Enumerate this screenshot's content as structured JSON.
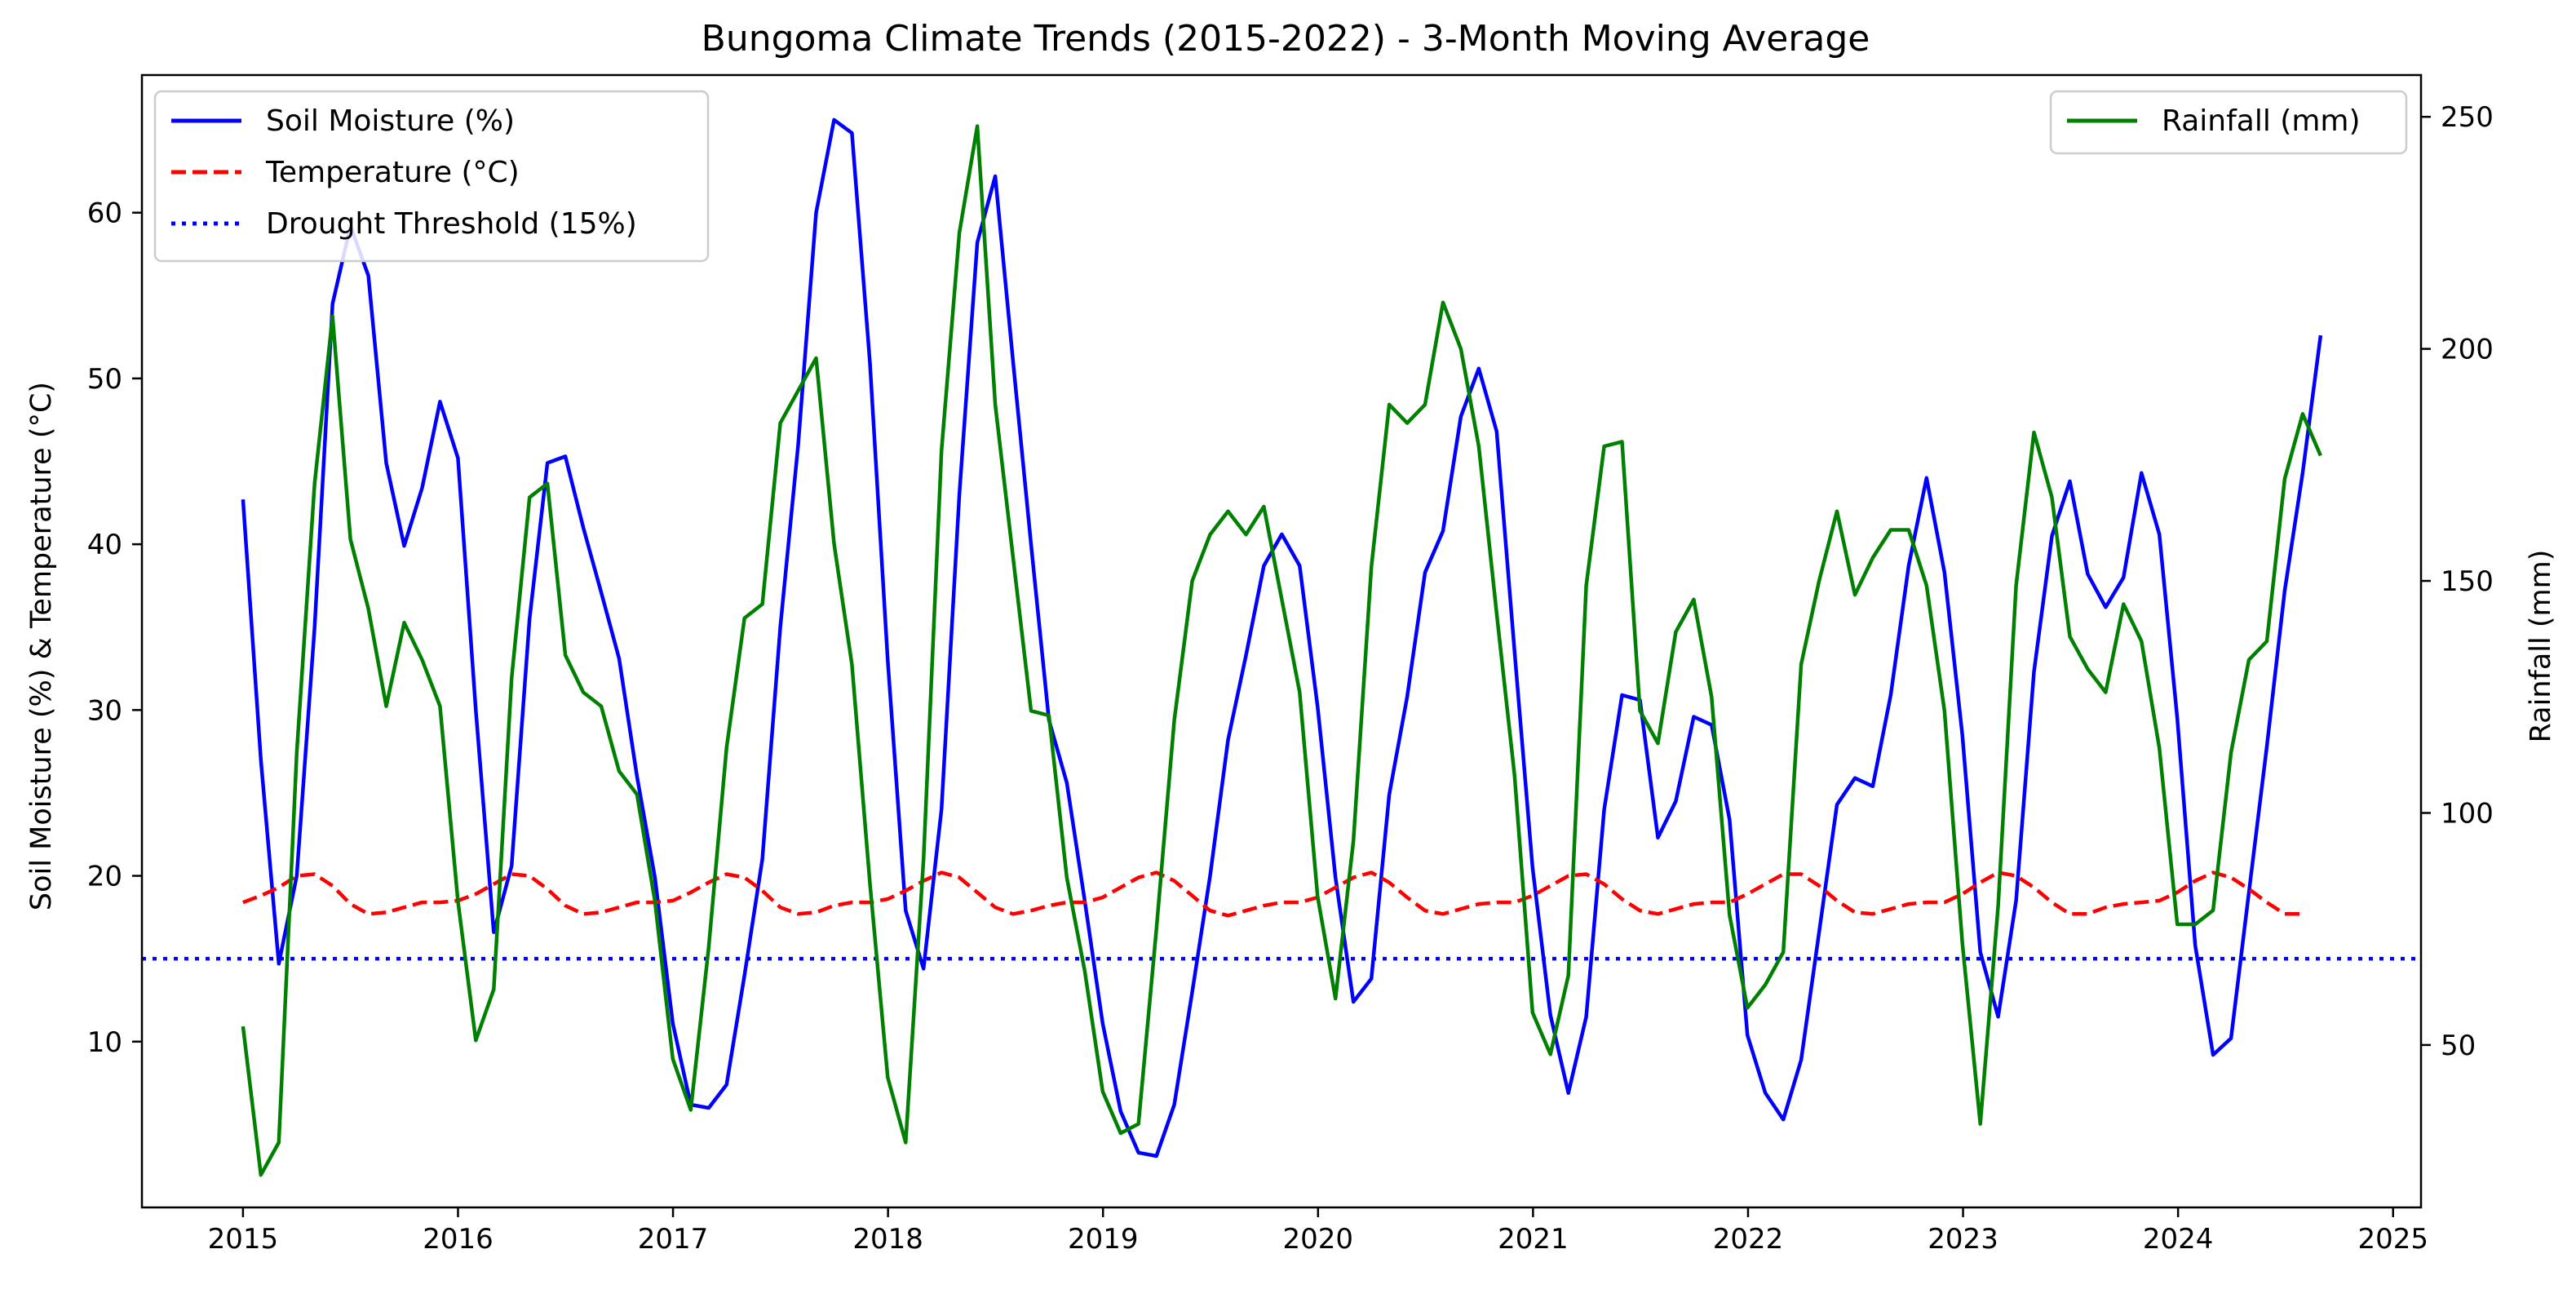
{
  "chart_data": {
    "type": "line",
    "title": "Bungoma Climate Trends (2015-2022) - 3-Month Moving Average",
    "xlabel": "",
    "ylabel": "Soil Moisture (%) & Temperature (°C)",
    "ylabel_right": "Rainfall (mm)",
    "xlim": [
      2014.53,
      2025.13
    ],
    "ylim": [
      0,
      68.3
    ],
    "ylim_right": [
      15,
      259
    ],
    "x_ticks": [
      2015,
      2016,
      2017,
      2018,
      2019,
      2020,
      2021,
      2022,
      2023,
      2024,
      2025
    ],
    "y_ticks": [
      10,
      20,
      30,
      40,
      50,
      60
    ],
    "y_right_ticks": [
      50,
      100,
      150,
      200,
      250
    ],
    "grid": false,
    "legend_left_placement": "upper left",
    "legend_right_placement": "upper right",
    "x_start": 2015.0,
    "x_step": 0.0833,
    "series": [
      {
        "name": "Soil Moisture (%)",
        "axis": "left",
        "color": "#0000ff",
        "style": "solid",
        "values": [
          42.7,
          27,
          14.7,
          20,
          35,
          54.5,
          59.2,
          56.2,
          44.9,
          39.9,
          43.4,
          48.6,
          45.2,
          30,
          16.6,
          20.6,
          35.5,
          44.9,
          45.3,
          41,
          37.1,
          33.1,
          26,
          19.9,
          11.1,
          6.2,
          6,
          7.4,
          14,
          21,
          35,
          46,
          60,
          65.6,
          64.8,
          51,
          33,
          17.9,
          14.4,
          24,
          43,
          58.2,
          62.2,
          51,
          40,
          29.4,
          25.6,
          18.5,
          11.1,
          5.8,
          3.3,
          3.1,
          6.2,
          13,
          20,
          28.2,
          33.3,
          38.7,
          40.6,
          38.7,
          30.2,
          19.9,
          12.4,
          13.8,
          24.9,
          30.8,
          38.3,
          40.8,
          47.7,
          50.6,
          46.8,
          33.5,
          20.5,
          11.6,
          6.9,
          11.5,
          24,
          30.9,
          30.6,
          22.3,
          24.5,
          29.6,
          29.1,
          23.4,
          10.4,
          6.9,
          5.3,
          8.9,
          16.6,
          24.3,
          25.9,
          25.4,
          30.9,
          38.7,
          44,
          38.3,
          28.5,
          15.4,
          11.5,
          18.5,
          32.3,
          40.5,
          43.8,
          38.2,
          36.2,
          38,
          44.3,
          40.6,
          29.5,
          15.8,
          9.2,
          10.2,
          19,
          27.8,
          37.2,
          44.3,
          52.6
        ]
      },
      {
        "name": "Temperature (°C)",
        "axis": "left",
        "color": "#ff0000",
        "style": "dashed",
        "values": [
          18.4,
          18.8,
          19.3,
          20,
          20.1,
          19.4,
          18.3,
          17.7,
          17.8,
          18.1,
          18.4,
          18.4,
          18.5,
          18.9,
          19.5,
          20.1,
          20,
          19.2,
          18.2,
          17.7,
          17.8,
          18.1,
          18.4,
          18.4,
          18.5,
          19,
          19.6,
          20.1,
          19.9,
          19.1,
          18.1,
          17.7,
          17.8,
          18.2,
          18.4,
          18.4,
          18.6,
          19.1,
          19.7,
          20.2,
          19.9,
          19,
          18.1,
          17.7,
          17.9,
          18.2,
          18.4,
          18.4,
          18.7,
          19.3,
          19.9,
          20.2,
          19.7,
          18.8,
          17.9,
          17.6,
          17.9,
          18.2,
          18.4,
          18.4,
          18.7,
          19.3,
          19.9,
          20.2,
          19.6,
          18.7,
          17.9,
          17.7,
          18,
          18.3,
          18.4,
          18.4,
          18.8,
          19.4,
          20,
          20.1,
          19.5,
          18.6,
          17.9,
          17.7,
          18,
          18.3,
          18.4,
          18.4,
          18.9,
          19.5,
          20.1,
          20.1,
          19.4,
          18.5,
          17.8,
          17.7,
          18,
          18.3,
          18.4,
          18.4,
          18.9,
          19.6,
          20.2,
          20,
          19.3,
          18.4,
          17.7,
          17.7,
          18.1,
          18.3,
          18.4,
          18.5,
          19,
          19.7,
          20.2,
          19.9,
          19.2,
          18.4,
          17.7,
          17.7
        ]
      },
      {
        "name": "Drought Threshold (15%)",
        "axis": "left",
        "color": "#0000ff",
        "style": "dotted",
        "constant": 15
      },
      {
        "name": "Rainfall (mm)",
        "axis": "right",
        "color": "#008000",
        "style": "solid",
        "values": [
          54,
          22,
          29,
          113,
          171,
          207,
          159,
          144,
          123,
          141,
          133,
          123,
          81,
          51,
          62,
          129,
          168,
          171,
          134,
          126,
          123,
          109,
          104,
          81,
          47,
          36,
          71,
          114,
          142,
          145,
          184,
          191,
          198,
          158,
          132,
          85,
          43,
          29,
          90,
          178,
          225,
          248,
          188,
          155,
          122,
          121,
          86,
          66,
          40,
          31,
          33,
          75,
          120,
          150,
          160,
          165,
          160,
          166,
          146,
          126,
          82,
          60,
          94,
          153,
          188,
          184,
          188,
          210,
          200,
          179,
          143,
          108,
          57,
          48,
          65,
          149,
          179,
          180,
          122,
          115,
          139,
          146,
          125,
          78,
          58,
          63,
          70,
          132,
          150,
          165,
          147,
          155,
          161,
          161,
          149,
          122,
          72,
          33,
          80,
          149,
          182,
          168,
          138,
          131,
          126,
          145,
          137,
          114,
          76,
          76,
          79,
          113,
          133,
          137,
          172,
          186,
          177
        ]
      }
    ]
  }
}
